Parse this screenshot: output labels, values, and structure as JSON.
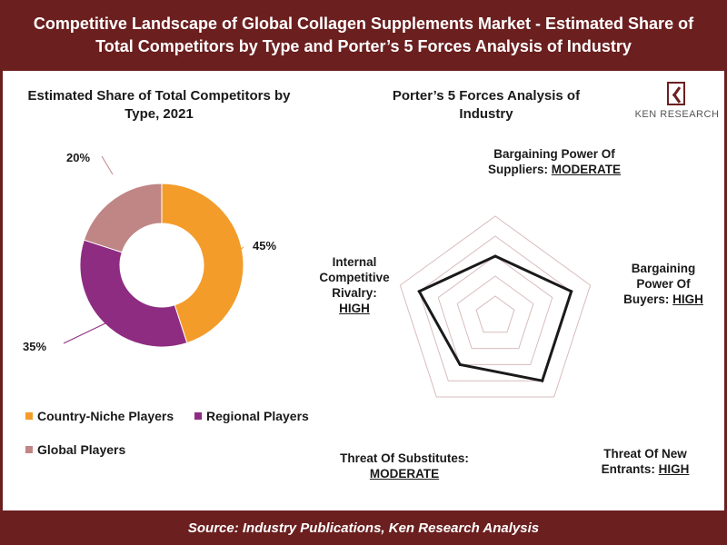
{
  "header": {
    "title": "Competitive Landscape of Global Collagen Supplements Market - Estimated Share of Total Competitors by Type and Porter’s 5 Forces Analysis of Industry"
  },
  "footer": {
    "source": "Source: Industry Publications, Ken Research Analysis"
  },
  "logo": {
    "text": "KEN RESEARCH",
    "icon": "ken-research-logo-icon"
  },
  "colors": {
    "brand": "#6b1f1f",
    "country_niche": "#f39c2a",
    "regional": "#8e2c82",
    "global": "#c08585",
    "radar_line": "#1a1a1a",
    "radar_grid": "#d9bcbc"
  },
  "chart_data": [
    {
      "type": "pie",
      "title": "Estimated Share of Total Competitors by Type, 2021",
      "categories": [
        "Country-Niche Players",
        "Regional Players",
        "Global Players"
      ],
      "values": [
        45,
        35,
        20
      ],
      "value_labels": [
        "45%",
        "35%",
        "20%"
      ],
      "legend": "bottom"
    },
    {
      "type": "radar",
      "title": "Porter’s 5 Forces Analysis of Industry",
      "categories": [
        "Bargaining Power Of Suppliers",
        "Bargaining Power Of Buyers",
        "Threat Of New Entrants",
        "Threat Of Substitutes",
        "Internal Competitive Rivalry"
      ],
      "levels": [
        "MODERATE",
        "HIGH",
        "HIGH",
        "MODERATE",
        "HIGH"
      ],
      "values": [
        3,
        4,
        4,
        3,
        4
      ],
      "scale_max": 5,
      "grid_rings": 5
    }
  ],
  "forces": [
    {
      "name": "Bargaining Power Of Suppliers:",
      "level": "MODERATE"
    },
    {
      "name": "Bargaining Power Of Buyers:",
      "level": "HIGH"
    },
    {
      "name": "Threat Of New Entrants:",
      "level": "HIGH"
    },
    {
      "name": "Threat Of Substitutes:",
      "level": "MODERATE"
    },
    {
      "name": "Internal Competitive Rivalry:",
      "level": "HIGH"
    }
  ]
}
